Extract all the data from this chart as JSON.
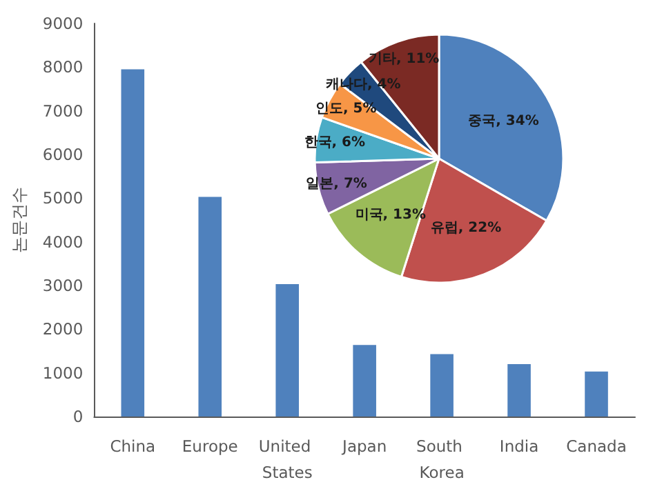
{
  "chart_data": [
    {
      "type": "bar",
      "ylabel": "논문건수",
      "categories": [
        "China",
        "Europe",
        "United States",
        "Japan",
        "South Korea",
        "India",
        "Canada"
      ],
      "values": [
        7950,
        5030,
        3030,
        1640,
        1430,
        1200,
        1030
      ],
      "color": "#4f81bd",
      "ylim": [
        0,
        9000
      ],
      "yticks": [
        0,
        1000,
        2000,
        3000,
        4000,
        5000,
        6000,
        7000,
        8000,
        9000
      ],
      "grid": false,
      "legend": false
    },
    {
      "type": "pie",
      "categories": [
        "중국",
        "유럽",
        "미국",
        "일본",
        "한국",
        "인도",
        "캐나다",
        "기타"
      ],
      "values": [
        34,
        22,
        13,
        7,
        6,
        5,
        4,
        11
      ],
      "value_labels": [
        "34%",
        "22%",
        "13%",
        "7%",
        "6%",
        "5%",
        "4%",
        "11%"
      ],
      "colors": [
        "#4f81bd",
        "#c0504d",
        "#9bbb59",
        "#8064a2",
        "#4bacc6",
        "#f79646",
        "#1f497d",
        "#7b2a24"
      ],
      "legend": false
    }
  ]
}
